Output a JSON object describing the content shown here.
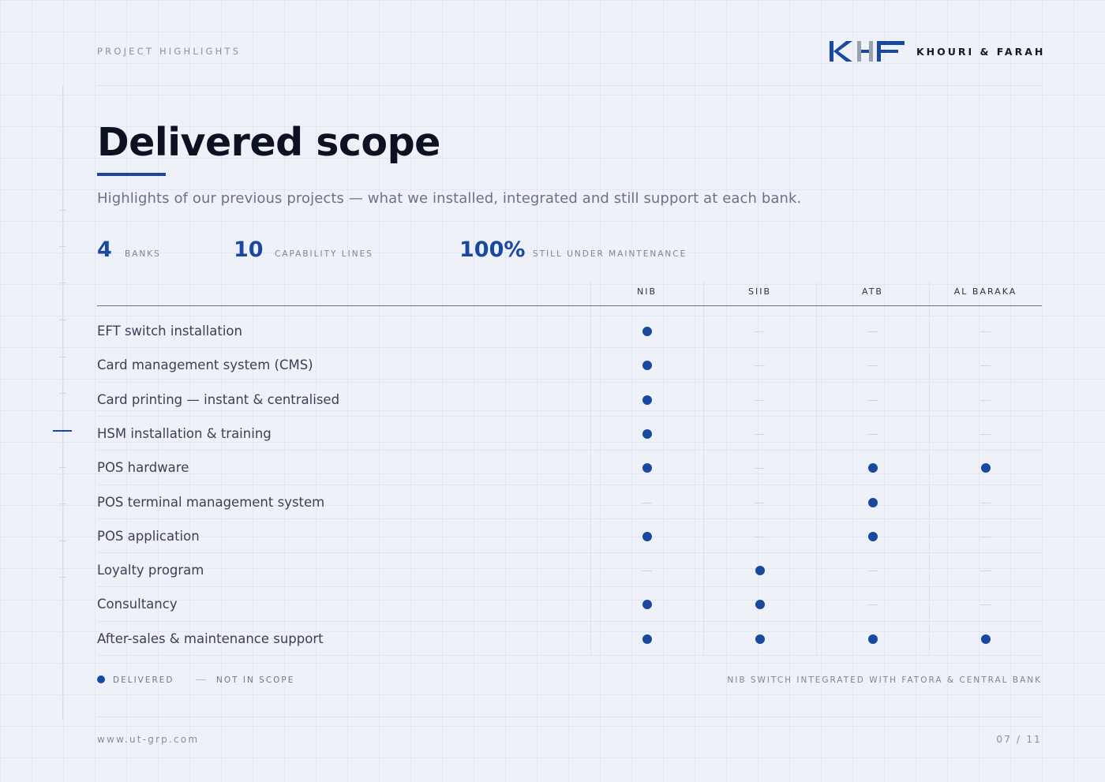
{
  "header": {
    "kicker": "PROJECT HIGHLIGHTS",
    "brand": "KHOURI & FARAH"
  },
  "title": "Delivered scope",
  "subtitle": "Highlights of our previous projects — what we installed, integrated and still support at each bank.",
  "stats": [
    {
      "value": "4",
      "label": "Banks"
    },
    {
      "value": "10",
      "label": "Capability lines"
    },
    {
      "value": "100%",
      "label": "Still under maintenance"
    }
  ],
  "table": {
    "banks": [
      "NIB",
      "SIIB",
      "ATB",
      "AL BARAKA"
    ],
    "rows": [
      {
        "label": "EFT switch installation",
        "delivered": [
          true,
          false,
          false,
          false
        ]
      },
      {
        "label": "Card management system (CMS)",
        "delivered": [
          true,
          false,
          false,
          false
        ]
      },
      {
        "label": "Card printing — instant & centralised",
        "delivered": [
          true,
          false,
          false,
          false
        ]
      },
      {
        "label": "HSM installation & training",
        "delivered": [
          true,
          false,
          false,
          false
        ]
      },
      {
        "label": "POS hardware",
        "delivered": [
          true,
          false,
          true,
          true
        ]
      },
      {
        "label": "POS terminal management system",
        "delivered": [
          false,
          false,
          true,
          false
        ]
      },
      {
        "label": "POS application",
        "delivered": [
          true,
          false,
          true,
          false
        ]
      },
      {
        "label": "Loyalty program",
        "delivered": [
          false,
          true,
          false,
          false
        ]
      },
      {
        "label": "Consultancy",
        "delivered": [
          true,
          true,
          false,
          false
        ]
      },
      {
        "label": "After-sales & maintenance support",
        "delivered": [
          true,
          true,
          true,
          true
        ]
      }
    ]
  },
  "legend": {
    "delivered": "Delivered",
    "not_in_scope": "Not in scope",
    "note": "NIB switch integrated with Fatora & Central Bank"
  },
  "footer": {
    "url": "www.ut-grp.com",
    "page": "07 / 11"
  },
  "colors": {
    "accent": "#1848a0",
    "logo_blue": "#1848a0",
    "logo_gray": "#9aa0ad"
  }
}
